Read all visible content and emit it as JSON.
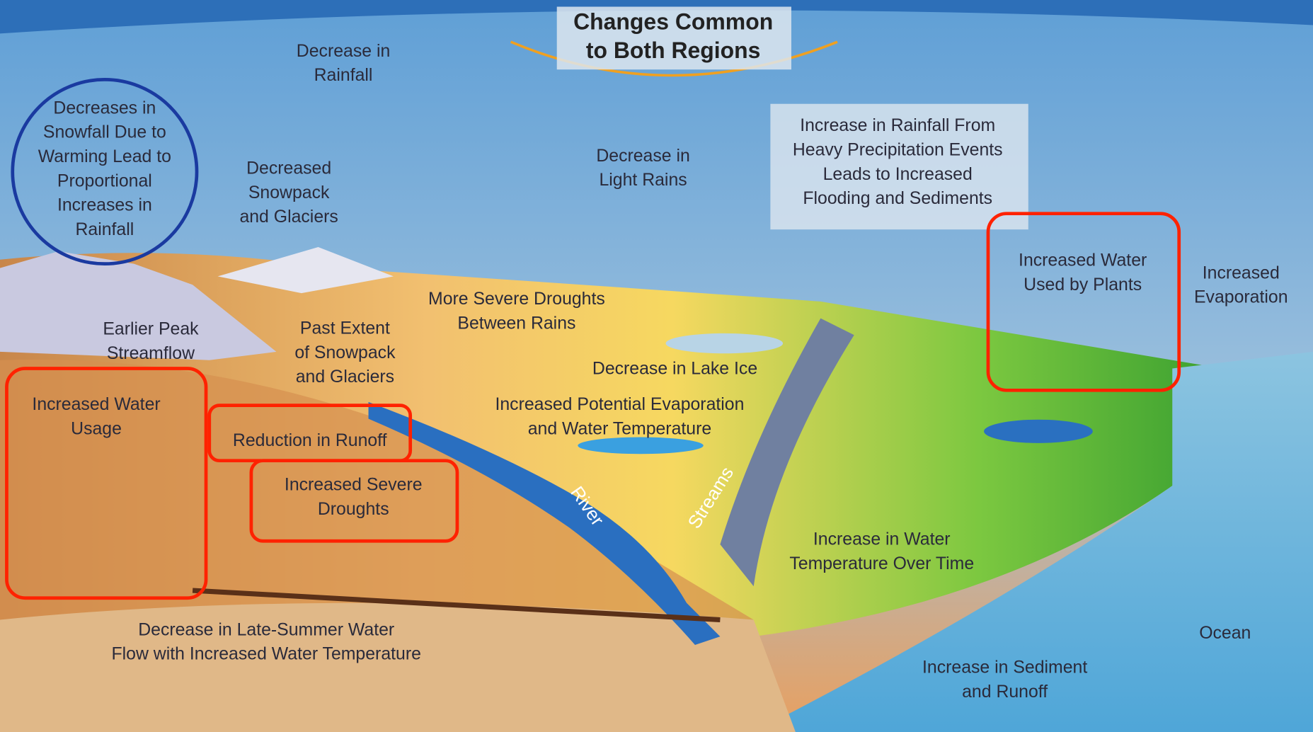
{
  "title": [
    "Changes Common",
    "to Both Regions"
  ],
  "labels": [
    {
      "lines": [
        "Decrease in",
        "Rainfall"
      ]
    },
    {
      "lines": [
        "Decreases in",
        "Snowfall Due to",
        "Warming Lead to",
        "Proportional",
        "Increases in",
        "Rainfall"
      ]
    },
    {
      "lines": [
        "Decreased",
        "Snowpack",
        "and Glaciers"
      ]
    },
    {
      "lines": [
        "Decrease in",
        "Light Rains"
      ]
    },
    {
      "lines": [
        "Increase in Rainfall From",
        "Heavy Precipitation Events",
        "Leads to Increased",
        "Flooding and Sediments"
      ]
    },
    {
      "lines": [
        "Increased",
        "Evaporation"
      ]
    },
    {
      "lines": [
        "Earlier Peak",
        "Streamflow"
      ]
    },
    {
      "lines": [
        "Past Extent",
        "of Snowpack",
        "and Glaciers"
      ]
    },
    {
      "lines": [
        "More Severe Droughts",
        "Between Rains"
      ]
    },
    {
      "lines": [
        "Decrease in Lake Ice"
      ]
    },
    {
      "lines": [
        "Increased Potential Evaporation",
        "and Water Temperature"
      ]
    },
    {
      "lines": [
        "River"
      ]
    },
    {
      "lines": [
        "Streams"
      ]
    },
    {
      "lines": [
        "Increase in Water",
        "Temperature Over Time"
      ]
    },
    {
      "lines": [
        "Decrease in Late-Summer Water",
        "Flow with Increased Water Temperature"
      ]
    },
    {
      "lines": [
        "Ocean"
      ]
    },
    {
      "lines": [
        "Increase in Sediment",
        "and Runoff"
      ]
    }
  ],
  "highlighted": [
    {
      "lines": [
        "Increased Water",
        "Usage"
      ]
    },
    {
      "lines": [
        "Reduction in Runoff"
      ]
    },
    {
      "lines": [
        "Increased Severe",
        "Droughts"
      ]
    },
    {
      "lines": [
        "Increased Water",
        "Used by Plants"
      ]
    }
  ]
}
